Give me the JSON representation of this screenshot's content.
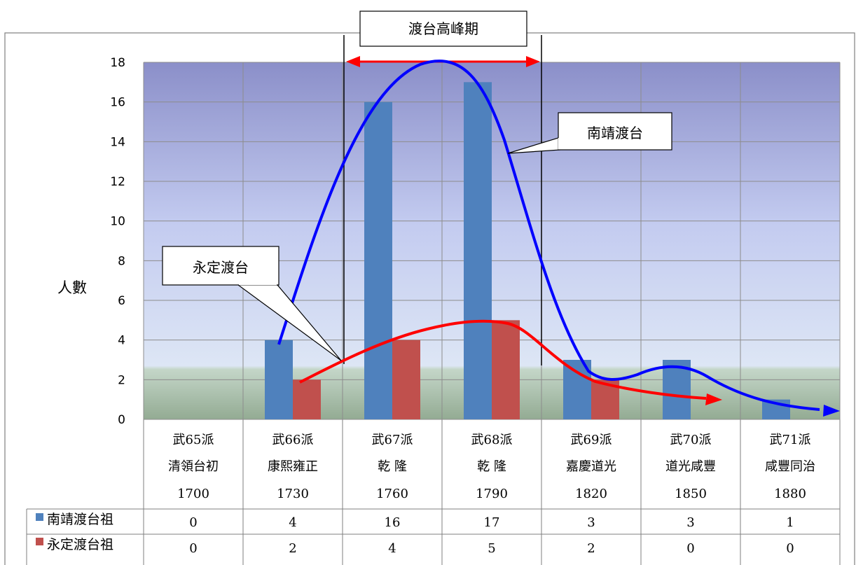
{
  "chart_data": {
    "type": "bar",
    "ylabel": "人數",
    "ylim": [
      0,
      18
    ],
    "yticks": [
      "0",
      "2",
      "4",
      "6",
      "8",
      "10",
      "12",
      "14",
      "16",
      "18"
    ],
    "grid": true,
    "categories": [
      [
        "武65派",
        "清領台初",
        "1700"
      ],
      [
        "武66派",
        "康熙雍正",
        "1730"
      ],
      [
        "武67派",
        "乾 隆",
        "1760"
      ],
      [
        "武68派",
        "乾 隆",
        "1790"
      ],
      [
        "武69派",
        "嘉慶道光",
        "1820"
      ],
      [
        "武70派",
        "道光咸豐",
        "1850"
      ],
      [
        "武71派",
        "咸豐同治",
        "1880"
      ]
    ],
    "series": [
      {
        "name": "南靖渡台祖",
        "color": "#4f81bd",
        "values": [
          0,
          4,
          16,
          17,
          3,
          3,
          1
        ]
      },
      {
        "name": "永定渡台祖",
        "color": "#c0504d",
        "values": [
          0,
          2,
          4,
          5,
          2,
          0,
          0
        ]
      }
    ],
    "data_table_values": [
      [
        "0",
        "4",
        "16",
        "17",
        "3",
        "3",
        "1"
      ],
      [
        "0",
        "2",
        "4",
        "5",
        "2",
        "0",
        "0"
      ]
    ],
    "annotations": {
      "peak_label": "渡台高峰期",
      "nanjing_callout": "南靖渡台",
      "yongding_callout": "永定渡台",
      "nanjing_trend_color": "#0000ff",
      "yongding_trend_color": "#ff0000"
    }
  }
}
